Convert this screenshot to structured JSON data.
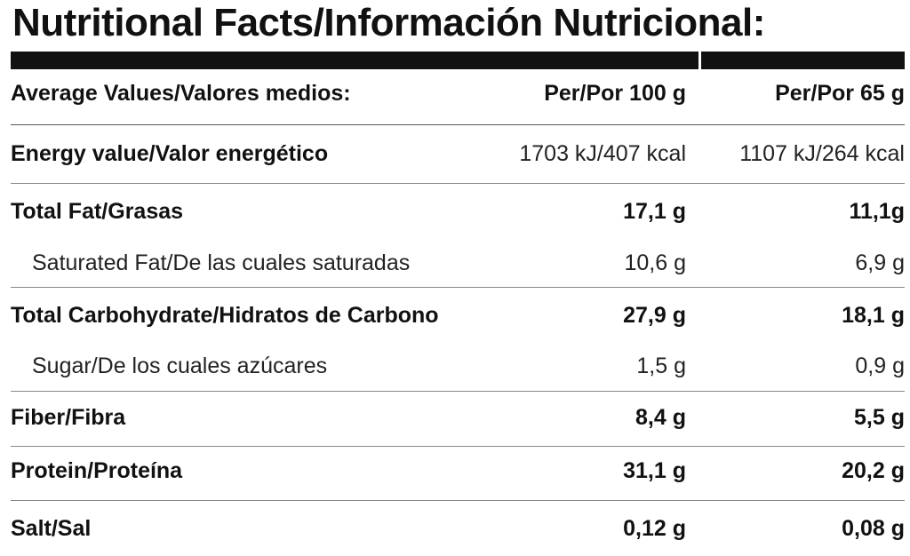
{
  "title": "Nutritional Facts/Información Nutricional:",
  "header": {
    "label": "Average Values/Valores medios:",
    "col1": "Per/Por 100 g",
    "col2": "Per/Por 65 g"
  },
  "rows": [
    {
      "label": "Energy value/Valor energético",
      "col1": "1703 kJ/407 kcal",
      "col2": "1107 kJ/264 kcal"
    },
    {
      "label": "Total Fat/Grasas",
      "col1": "17,1 g",
      "col2": "11,1g"
    },
    {
      "label": "Saturated Fat/De las cuales saturadas",
      "col1": "10,6 g",
      "col2": "6,9 g"
    },
    {
      "label": "Total Carbohydrate/Hidratos de Carbono",
      "col1": "27,9 g",
      "col2": "18,1 g"
    },
    {
      "label": "Sugar/De los cuales azúcares",
      "col1": "1,5 g",
      "col2": "0,9 g"
    },
    {
      "label": "Fiber/Fibra",
      "col1": "8,4 g",
      "col2": "5,5 g"
    },
    {
      "label": "Protein/Proteína",
      "col1": "31,1 g",
      "col2": "20,2 g"
    },
    {
      "label": "Salt/Sal",
      "col1": "0,12 g",
      "col2": "0,08 g"
    }
  ]
}
